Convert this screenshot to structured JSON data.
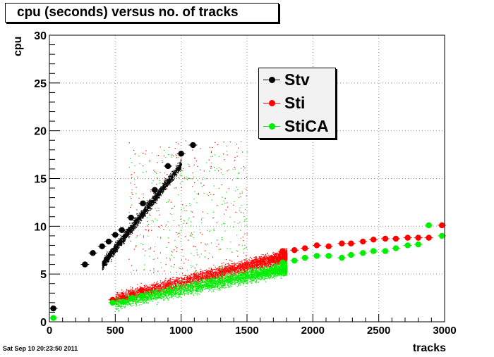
{
  "title": "cpu (seconds) versus no. of tracks",
  "timestamp": "Sat Sep 10 20:23:50 2011",
  "chart_data": {
    "type": "scatter",
    "title": "cpu (seconds) versus no. of tracks",
    "xlabel": "tracks",
    "ylabel": "cpu",
    "xlim": [
      0,
      3000
    ],
    "ylim": [
      0,
      30
    ],
    "x_ticks": [
      "0",
      "500",
      "1000",
      "1500",
      "2000",
      "2500",
      "3000"
    ],
    "y_ticks": [
      "0",
      "5",
      "10",
      "15",
      "20",
      "25",
      "30"
    ],
    "grid": true,
    "legend_position": "top-center-right",
    "series": [
      {
        "name": "Stv",
        "color": "#000000",
        "profile_points": [
          [
            30,
            1.4
          ],
          [
            270,
            6.0
          ],
          [
            330,
            7.2
          ],
          [
            400,
            7.9
          ],
          [
            450,
            8.4
          ],
          [
            500,
            9.1
          ],
          [
            550,
            9.6
          ],
          [
            620,
            10.9
          ],
          [
            710,
            12.4
          ],
          [
            800,
            13.8
          ],
          [
            900,
            16.3
          ],
          [
            1000,
            17.6
          ],
          [
            1090,
            18.5
          ]
        ],
        "cloud": {
          "x_range": [
            400,
            1000
          ],
          "slope": 0.0175,
          "intercept": -1.0
        }
      },
      {
        "name": "Sti",
        "color": "#ff0000",
        "profile_points": [
          [
            480,
            2.3
          ],
          [
            560,
            2.5
          ],
          [
            630,
            2.9
          ],
          [
            700,
            3.3
          ],
          [
            1770,
            7.4
          ],
          [
            1860,
            7.5
          ],
          [
            1940,
            7.7
          ],
          [
            2030,
            8.0
          ],
          [
            2120,
            7.9
          ],
          [
            2220,
            8.2
          ],
          [
            2290,
            8.2
          ],
          [
            2380,
            8.4
          ],
          [
            2460,
            8.6
          ],
          [
            2550,
            8.7
          ],
          [
            2630,
            8.7
          ],
          [
            2720,
            8.8
          ],
          [
            2800,
            8.8
          ],
          [
            2880,
            8.8
          ],
          [
            2980,
            10.1
          ]
        ],
        "cloud": {
          "x_range": [
            500,
            1800
          ],
          "slope": 0.0034,
          "intercept": 0.8
        }
      },
      {
        "name": "StiCA",
        "color": "#00ee00",
        "profile_points": [
          [
            30,
            0.4
          ],
          [
            480,
            2.0
          ],
          [
            560,
            2.1
          ],
          [
            630,
            2.5
          ],
          [
            700,
            2.7
          ],
          [
            1770,
            6.2
          ],
          [
            1860,
            6.4
          ],
          [
            1940,
            6.7
          ],
          [
            2030,
            6.9
          ],
          [
            2120,
            6.9
          ],
          [
            2220,
            6.7
          ],
          [
            2290,
            7.0
          ],
          [
            2380,
            7.2
          ],
          [
            2460,
            7.4
          ],
          [
            2550,
            7.4
          ],
          [
            2630,
            7.7
          ],
          [
            2720,
            8.0
          ],
          [
            2800,
            8.1
          ],
          [
            2880,
            10.1
          ],
          [
            2980,
            9.0
          ]
        ],
        "cloud": {
          "x_range": [
            500,
            1800
          ],
          "slope": 0.0028,
          "intercept": 0.6
        }
      }
    ]
  }
}
